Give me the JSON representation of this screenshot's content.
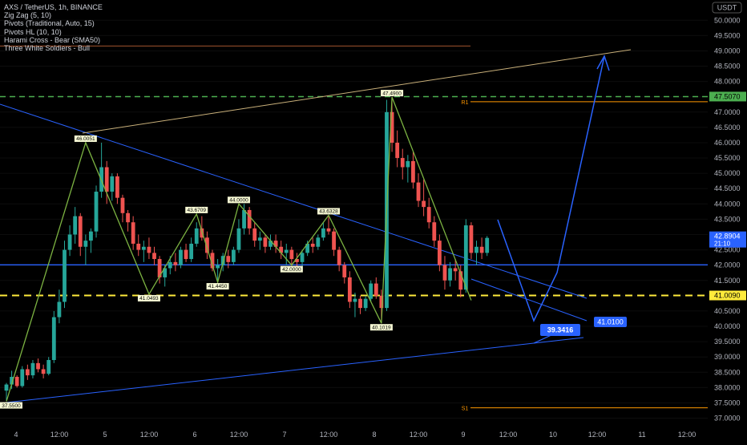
{
  "header": {
    "title": "AXS / TetherUS, 1h, BINANCE",
    "indicators": [
      "Zig Zag (5, 10)",
      "Pivots (Traditional, Auto, 15)",
      "Pivots HL (10, 10)",
      "Harami Cross - Bear (SMA50)",
      "Three White Soldiers - Bull"
    ],
    "currency_button": "USDT"
  },
  "colors": {
    "background": "#000000",
    "up": "#26a69a",
    "down": "#ef5350",
    "zigzag": "#7cb342",
    "trendline": "#2962ff",
    "resistance_line": "#c9b07a",
    "support_line": "#ffeb3b",
    "r1_line": "#ff9800",
    "green_dashed": "#4caf50",
    "price_badge": "#2962ff",
    "axis_text": "#b2b5be"
  },
  "chart_data": {
    "type": "candlestick",
    "symbol": "AXS / TetherUS",
    "interval": "1h",
    "exchange": "BINANCE",
    "ylim": [
      36.7,
      50.4
    ],
    "y_ticks": [
      "37.0000",
      "37.5000",
      "38.0000",
      "38.5000",
      "39.0000",
      "39.5000",
      "40.0000",
      "40.5000",
      "41.0000",
      "41.5000",
      "42.0000",
      "42.5000",
      "43.0000",
      "43.5000",
      "44.0000",
      "44.5000",
      "45.0000",
      "45.5000",
      "46.0000",
      "46.5000",
      "47.0000",
      "47.5000",
      "48.0000",
      "48.5000",
      "49.0000",
      "49.5000",
      "50.0000"
    ],
    "x_ticks": [
      "4",
      "12:00",
      "5",
      "12:00",
      "6",
      "12:00",
      "7",
      "12:00",
      "8",
      "12:00",
      "9",
      "12:00",
      "10",
      "12:00",
      "11",
      "12:00"
    ],
    "current_price": "42.8904",
    "countdown": "21:10",
    "price_labels": {
      "resistance": "47.5070",
      "support": "41.0090"
    },
    "pivot_levels": [
      {
        "name": "R1",
        "value": 47.34
      },
      {
        "name": "S1",
        "value": 37.34
      }
    ],
    "horizontal_levels": {
      "green_dashed": 47.507,
      "yellow_dashed": 41.009,
      "blue_solid": 42.01,
      "orange_top": 49.16
    },
    "zigzag_labels": [
      "37.5500",
      "46.0051",
      "41.0493",
      "43.6709",
      "41.4450",
      "44.0000",
      "42.0000",
      "43.6328",
      "40.1019",
      "47.4900"
    ],
    "annotations": {
      "target_price": "39.3416",
      "channel_price": "41.0100"
    },
    "candles": [
      [
        37.9,
        38.15,
        37.55,
        38.1
      ],
      [
        38.1,
        38.55,
        37.95,
        38.35
      ],
      [
        38.35,
        38.4,
        38.0,
        38.05
      ],
      [
        38.05,
        38.7,
        38.0,
        38.6
      ],
      [
        38.6,
        38.75,
        38.25,
        38.4
      ],
      [
        38.4,
        38.9,
        38.3,
        38.8
      ],
      [
        38.8,
        38.95,
        38.5,
        38.6
      ],
      [
        38.6,
        38.75,
        38.3,
        38.45
      ],
      [
        38.45,
        39.0,
        38.4,
        38.9
      ],
      [
        38.9,
        40.5,
        38.8,
        40.3
      ],
      [
        40.3,
        41.2,
        40.1,
        40.8
      ],
      [
        40.8,
        42.8,
        40.6,
        42.5
      ],
      [
        42.5,
        43.3,
        42.3,
        43.0
      ],
      [
        43.0,
        43.9,
        42.7,
        43.6
      ],
      [
        43.6,
        43.7,
        42.3,
        42.6
      ],
      [
        42.6,
        43.0,
        42.0,
        42.8
      ],
      [
        42.8,
        43.2,
        42.4,
        43.1
      ],
      [
        43.1,
        44.6,
        42.9,
        44.4
      ],
      [
        44.4,
        46.0,
        44.2,
        45.2
      ],
      [
        45.2,
        45.4,
        44.0,
        44.4
      ],
      [
        44.4,
        45.0,
        44.1,
        44.9
      ],
      [
        44.9,
        45.0,
        44.0,
        44.2
      ],
      [
        44.2,
        44.3,
        43.4,
        43.7
      ],
      [
        43.7,
        43.8,
        43.1,
        43.4
      ],
      [
        43.4,
        43.6,
        42.5,
        42.7
      ],
      [
        42.7,
        43.0,
        42.3,
        42.5
      ],
      [
        42.5,
        42.8,
        42.1,
        42.6
      ],
      [
        42.6,
        42.9,
        42.2,
        42.4
      ],
      [
        42.4,
        42.6,
        42.0,
        42.2
      ],
      [
        42.2,
        42.3,
        41.4,
        41.6
      ],
      [
        41.6,
        42.0,
        41.3,
        41.9
      ],
      [
        41.9,
        42.3,
        41.7,
        42.1
      ],
      [
        42.1,
        42.4,
        41.8,
        42.0
      ],
      [
        42.0,
        42.6,
        41.9,
        42.5
      ],
      [
        42.5,
        42.7,
        42.1,
        42.2
      ],
      [
        42.2,
        42.9,
        42.1,
        42.7
      ],
      [
        42.7,
        43.4,
        42.6,
        43.2
      ],
      [
        43.2,
        43.6,
        42.8,
        42.9
      ],
      [
        42.9,
        43.1,
        42.2,
        42.4
      ],
      [
        42.4,
        42.5,
        41.8,
        41.9
      ],
      [
        41.9,
        42.2,
        41.45,
        42.0
      ],
      [
        42.0,
        42.4,
        41.8,
        42.3
      ],
      [
        42.3,
        42.5,
        41.9,
        42.1
      ],
      [
        42.1,
        42.6,
        42.0,
        42.5
      ],
      [
        42.5,
        43.5,
        42.4,
        43.2
      ],
      [
        43.2,
        44.0,
        43.0,
        43.8
      ],
      [
        43.8,
        43.9,
        43.0,
        43.2
      ],
      [
        43.2,
        43.4,
        42.6,
        42.8
      ],
      [
        42.8,
        43.1,
        42.5,
        42.9
      ],
      [
        42.9,
        43.0,
        42.4,
        42.6
      ],
      [
        42.6,
        43.0,
        42.5,
        42.8
      ],
      [
        42.8,
        43.0,
        42.4,
        42.6
      ],
      [
        42.6,
        42.8,
        42.2,
        42.4
      ],
      [
        42.4,
        42.7,
        42.0,
        42.5
      ],
      [
        42.5,
        42.6,
        42.0,
        42.2
      ],
      [
        42.2,
        42.4,
        41.9,
        42.1
      ],
      [
        42.1,
        42.5,
        41.95,
        42.4
      ],
      [
        42.4,
        42.8,
        42.3,
        42.7
      ],
      [
        42.7,
        42.9,
        42.4,
        42.6
      ],
      [
        42.6,
        43.0,
        42.5,
        42.9
      ],
      [
        42.9,
        43.4,
        42.8,
        43.2
      ],
      [
        43.2,
        43.63,
        43.0,
        43.1
      ],
      [
        43.1,
        43.2,
        42.3,
        42.5
      ],
      [
        42.5,
        42.6,
        41.8,
        42.0
      ],
      [
        42.0,
        42.1,
        41.4,
        41.6
      ],
      [
        41.6,
        41.8,
        40.6,
        40.8
      ],
      [
        40.8,
        41.1,
        40.3,
        40.9
      ],
      [
        40.9,
        41.0,
        40.4,
        40.6
      ],
      [
        40.6,
        41.0,
        40.5,
        40.9
      ],
      [
        40.9,
        41.5,
        40.8,
        41.4
      ],
      [
        41.4,
        41.6,
        40.9,
        41.0
      ],
      [
        41.0,
        41.2,
        40.1,
        40.6
      ],
      [
        40.6,
        47.4,
        40.5,
        47.0
      ],
      [
        47.0,
        47.49,
        45.7,
        46.0
      ],
      [
        46.0,
        46.4,
        45.2,
        45.5
      ],
      [
        45.5,
        45.8,
        44.8,
        45.2
      ],
      [
        45.2,
        45.6,
        44.7,
        45.4
      ],
      [
        45.4,
        45.7,
        44.5,
        44.7
      ],
      [
        44.7,
        45.0,
        43.9,
        44.1
      ],
      [
        44.1,
        44.8,
        43.6,
        43.9
      ],
      [
        43.9,
        44.2,
        43.2,
        43.4
      ],
      [
        43.4,
        43.6,
        42.6,
        42.8
      ],
      [
        42.8,
        43.0,
        41.8,
        42.0
      ],
      [
        42.0,
        42.3,
        41.2,
        41.5
      ],
      [
        41.5,
        42.1,
        41.3,
        41.9
      ],
      [
        41.9,
        42.2,
        41.5,
        41.8
      ],
      [
        41.8,
        42.0,
        40.95,
        41.2
      ],
      [
        41.2,
        43.5,
        41.1,
        43.3
      ],
      [
        43.3,
        43.4,
        42.2,
        42.4
      ],
      [
        42.4,
        42.8,
        42.0,
        42.6
      ],
      [
        42.6,
        42.9,
        42.2,
        42.4
      ],
      [
        42.4,
        42.95,
        42.3,
        42.89
      ]
    ]
  }
}
